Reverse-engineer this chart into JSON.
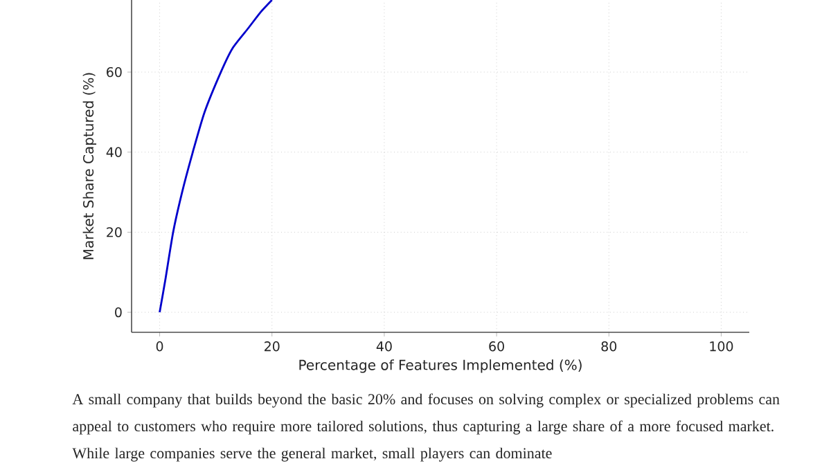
{
  "chart_data": {
    "type": "line",
    "xlabel": "Percentage of Features Implemented (%)",
    "ylabel": "Market Share Captured (%)",
    "x": [
      0,
      1,
      2.4,
      4,
      5.9,
      8,
      10.9,
      13,
      15.8,
      18,
      20
    ],
    "series": [
      {
        "color": "#0000cc",
        "values": [
          0,
          8,
          20,
          30,
          40,
          50,
          60,
          66,
          71,
          75,
          78
        ]
      }
    ],
    "xlim": [
      -5,
      105
    ],
    "ylim": [
      -5,
      78
    ],
    "xticks": [
      0,
      20,
      40,
      60,
      80,
      100
    ],
    "yticks": [
      0,
      20,
      40,
      60
    ],
    "grid": true,
    "annotations": [
      "A small company that builds beyond the basic 20% and focuses on solving complex or specialized problems can appeal to customers who require more tailored solutions, thus capturing a large share of a more focused market. While large companies serve the general market, small players can dominate"
    ]
  }
}
